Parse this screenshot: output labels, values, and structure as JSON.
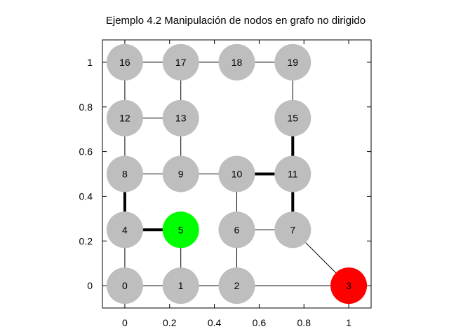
{
  "chart_data": {
    "type": "scatter",
    "title": "Ejemplo 4.2 Manipulación de nodos en grafo no dirigido",
    "xlabel": "",
    "ylabel": "",
    "xlim": [
      -0.1,
      1.1
    ],
    "ylim": [
      -0.1,
      1.1
    ],
    "x_ticks": [
      0,
      0.2,
      0.4,
      0.6,
      0.8,
      1
    ],
    "x_tick_labels": [
      "0",
      "0.2",
      "0.4",
      "0.6",
      "0.8",
      "1"
    ],
    "y_ticks": [
      0,
      0.2,
      0.4,
      0.6,
      0.8,
      1
    ],
    "y_tick_labels": [
      "0",
      "0.2",
      "0.4",
      "0.6",
      "0.8",
      "1"
    ],
    "grid": false,
    "colors": {
      "default_node": "#bebebe",
      "start_node": "#00ff00",
      "end_node": "#ff0000",
      "edge": "#000000"
    },
    "nodes": [
      {
        "id": "0",
        "x": 0,
        "y": 0,
        "state": "default"
      },
      {
        "id": "1",
        "x": 0.25,
        "y": 0,
        "state": "default"
      },
      {
        "id": "2",
        "x": 0.5,
        "y": 0,
        "state": "default"
      },
      {
        "id": "3",
        "x": 1,
        "y": 0,
        "state": "end"
      },
      {
        "id": "4",
        "x": 0,
        "y": 0.25,
        "state": "default"
      },
      {
        "id": "5",
        "x": 0.25,
        "y": 0.25,
        "state": "start"
      },
      {
        "id": "6",
        "x": 0.5,
        "y": 0.25,
        "state": "default"
      },
      {
        "id": "7",
        "x": 0.75,
        "y": 0.25,
        "state": "default"
      },
      {
        "id": "8",
        "x": 0,
        "y": 0.5,
        "state": "default"
      },
      {
        "id": "9",
        "x": 0.25,
        "y": 0.5,
        "state": "default"
      },
      {
        "id": "10",
        "x": 0.5,
        "y": 0.5,
        "state": "default"
      },
      {
        "id": "11",
        "x": 0.75,
        "y": 0.5,
        "state": "default"
      },
      {
        "id": "12",
        "x": 0,
        "y": 0.75,
        "state": "default"
      },
      {
        "id": "13",
        "x": 0.25,
        "y": 0.75,
        "state": "default"
      },
      {
        "id": "15",
        "x": 0.75,
        "y": 0.75,
        "state": "default"
      },
      {
        "id": "16",
        "x": 0,
        "y": 1,
        "state": "default"
      },
      {
        "id": "17",
        "x": 0.25,
        "y": 1,
        "state": "default"
      },
      {
        "id": "18",
        "x": 0.5,
        "y": 1,
        "state": "default"
      },
      {
        "id": "19",
        "x": 0.75,
        "y": 1,
        "state": "default"
      }
    ],
    "edges": [
      {
        "from": "0",
        "to": "1",
        "highlight": false
      },
      {
        "from": "0",
        "to": "4",
        "highlight": false
      },
      {
        "from": "1",
        "to": "2",
        "highlight": false
      },
      {
        "from": "1",
        "to": "5",
        "highlight": false
      },
      {
        "from": "2",
        "to": "3",
        "highlight": false
      },
      {
        "from": "2",
        "to": "6",
        "highlight": false
      },
      {
        "from": "3",
        "to": "7",
        "highlight": false
      },
      {
        "from": "4",
        "to": "5",
        "highlight": true
      },
      {
        "from": "4",
        "to": "8",
        "highlight": true
      },
      {
        "from": "6",
        "to": "7",
        "highlight": false
      },
      {
        "from": "6",
        "to": "10",
        "highlight": false
      },
      {
        "from": "7",
        "to": "11",
        "highlight": true
      },
      {
        "from": "8",
        "to": "9",
        "highlight": false
      },
      {
        "from": "8",
        "to": "12",
        "highlight": false
      },
      {
        "from": "9",
        "to": "10",
        "highlight": false
      },
      {
        "from": "9",
        "to": "13",
        "highlight": false
      },
      {
        "from": "10",
        "to": "11",
        "highlight": true
      },
      {
        "from": "11",
        "to": "15",
        "highlight": true
      },
      {
        "from": "12",
        "to": "13",
        "highlight": false
      },
      {
        "from": "12",
        "to": "16",
        "highlight": false
      },
      {
        "from": "13",
        "to": "17",
        "highlight": false
      },
      {
        "from": "15",
        "to": "19",
        "highlight": false
      },
      {
        "from": "16",
        "to": "17",
        "highlight": false
      },
      {
        "from": "17",
        "to": "18",
        "highlight": false
      },
      {
        "from": "18",
        "to": "19",
        "highlight": false
      }
    ]
  }
}
